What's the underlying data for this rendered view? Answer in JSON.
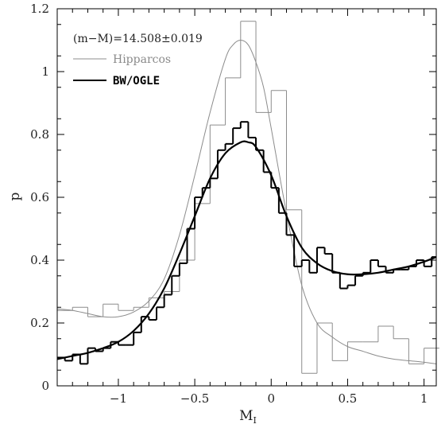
{
  "chart_data": {
    "type": "line",
    "xlabel_main": "M",
    "xlabel_sub": "I",
    "ylabel": "p",
    "xlim": [
      -1.4,
      1.08
    ],
    "ylim": [
      0,
      1.2
    ],
    "x_ticks": [
      -1,
      -0.5,
      0,
      0.5,
      1
    ],
    "x_tick_labels": [
      "−1",
      "−0.5",
      "0",
      "0.5",
      "1"
    ],
    "y_ticks": [
      0,
      0.2,
      0.4,
      0.6,
      0.8,
      1,
      1.2
    ],
    "y_tick_labels": [
      "0",
      "0.2",
      "0.4",
      "0.6",
      "0.8",
      "1",
      "1.2"
    ],
    "annotation": "(m−M)=14.508±0.019",
    "legend_position": "top-left",
    "colors": {
      "hipparcos": "#8c8c8c",
      "bwogle": "#000000"
    },
    "series": [
      {
        "name": "Hipparcos",
        "kind": "histogram",
        "bin_edges": [
          -1.4,
          -1.3,
          -1.2,
          -1.1,
          -1.0,
          -0.9,
          -0.8,
          -0.7,
          -0.6,
          -0.5,
          -0.4,
          -0.3,
          -0.2,
          -0.1,
          0.0,
          0.1,
          0.2,
          0.3,
          0.4,
          0.5,
          0.6,
          0.7,
          0.8,
          0.9,
          1.0,
          1.1
        ],
        "values": [
          0.24,
          0.25,
          0.22,
          0.26,
          0.24,
          0.25,
          0.28,
          0.3,
          0.4,
          0.58,
          0.83,
          0.98,
          1.16,
          0.87,
          0.94,
          0.56,
          0.04,
          0.2,
          0.08,
          0.14,
          0.14,
          0.19,
          0.15,
          0.07,
          0.12
        ]
      },
      {
        "name": "Hipparcos fit",
        "kind": "curve",
        "x": [
          -1.4,
          -1.3,
          -1.2,
          -1.1,
          -1.0,
          -0.9,
          -0.8,
          -0.7,
          -0.6,
          -0.5,
          -0.4,
          -0.3,
          -0.25,
          -0.2,
          -0.15,
          -0.1,
          -0.05,
          0.0,
          0.1,
          0.2,
          0.3,
          0.4,
          0.5,
          0.6,
          0.7,
          0.8,
          0.9,
          1.0,
          1.08
        ],
        "y": [
          0.245,
          0.24,
          0.23,
          0.22,
          0.22,
          0.235,
          0.27,
          0.34,
          0.48,
          0.67,
          0.87,
          1.04,
          1.085,
          1.1,
          1.085,
          1.03,
          0.95,
          0.82,
          0.55,
          0.32,
          0.2,
          0.155,
          0.125,
          0.11,
          0.095,
          0.085,
          0.08,
          0.075,
          0.07
        ]
      },
      {
        "name": "BW/OGLE",
        "kind": "histogram",
        "bin_edges": [
          -1.4,
          -1.35,
          -1.3,
          -1.25,
          -1.2,
          -1.15,
          -1.1,
          -1.05,
          -1.0,
          -0.95,
          -0.9,
          -0.85,
          -0.8,
          -0.75,
          -0.7,
          -0.65,
          -0.6,
          -0.55,
          -0.5,
          -0.45,
          -0.4,
          -0.35,
          -0.3,
          -0.25,
          -0.2,
          -0.15,
          -0.1,
          -0.05,
          0.0,
          0.05,
          0.1,
          0.15,
          0.2,
          0.25,
          0.3,
          0.35,
          0.4,
          0.45,
          0.5,
          0.55,
          0.6,
          0.65,
          0.7,
          0.75,
          0.8,
          0.85,
          0.9,
          0.95,
          1.0,
          1.05,
          1.08
        ],
        "values": [
          0.09,
          0.08,
          0.1,
          0.07,
          0.12,
          0.11,
          0.12,
          0.14,
          0.13,
          0.13,
          0.17,
          0.22,
          0.21,
          0.25,
          0.29,
          0.35,
          0.39,
          0.5,
          0.6,
          0.63,
          0.66,
          0.75,
          0.77,
          0.82,
          0.84,
          0.79,
          0.75,
          0.68,
          0.63,
          0.55,
          0.48,
          0.38,
          0.4,
          0.36,
          0.44,
          0.42,
          0.36,
          0.31,
          0.32,
          0.35,
          0.36,
          0.4,
          0.38,
          0.36,
          0.37,
          0.37,
          0.38,
          0.4,
          0.38,
          0.41
        ]
      },
      {
        "name": "BW/OGLE fit",
        "kind": "curve",
        "x": [
          -1.4,
          -1.3,
          -1.2,
          -1.1,
          -1.0,
          -0.9,
          -0.8,
          -0.7,
          -0.6,
          -0.5,
          -0.4,
          -0.3,
          -0.2,
          -0.15,
          -0.1,
          0.0,
          0.1,
          0.2,
          0.3,
          0.4,
          0.5,
          0.6,
          0.7,
          0.8,
          0.9,
          1.0,
          1.08
        ],
        "y": [
          0.085,
          0.095,
          0.105,
          0.12,
          0.14,
          0.175,
          0.23,
          0.31,
          0.42,
          0.54,
          0.66,
          0.74,
          0.775,
          0.775,
          0.76,
          0.67,
          0.54,
          0.44,
          0.39,
          0.365,
          0.355,
          0.355,
          0.36,
          0.37,
          0.38,
          0.395,
          0.41
        ]
      }
    ]
  }
}
